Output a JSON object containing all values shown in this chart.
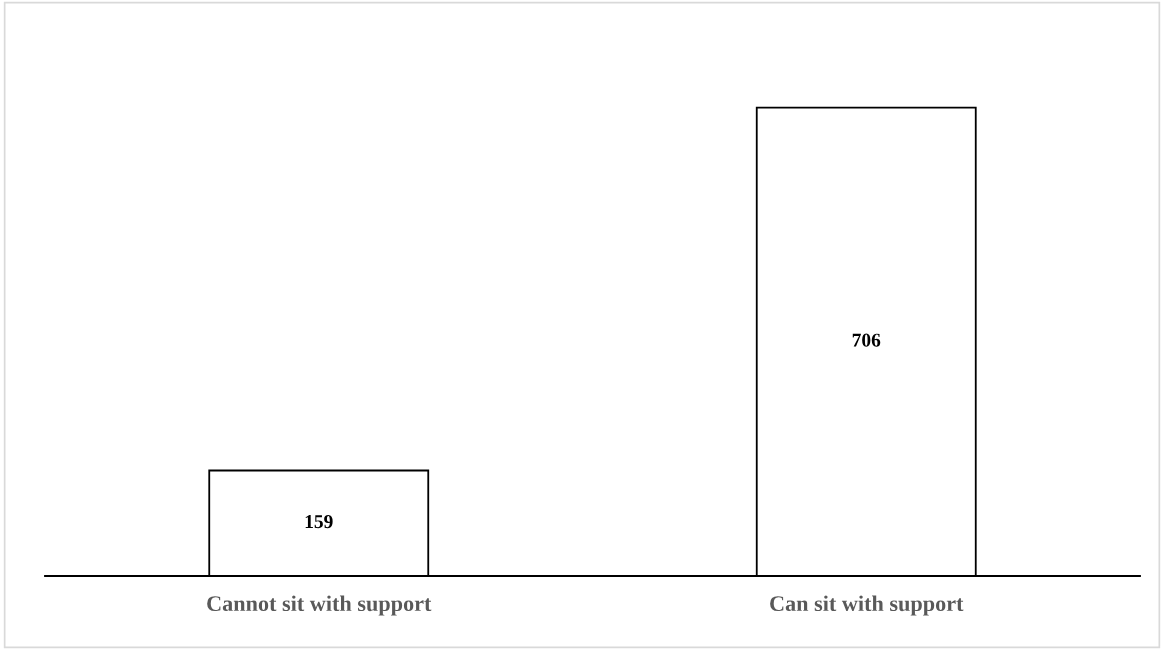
{
  "chart_data": {
    "type": "bar",
    "categories": [
      "Cannot sit with support",
      "Can sit with support"
    ],
    "values": [
      159,
      706
    ],
    "color": "#ffffff",
    "data_labels": true,
    "grid": false,
    "legend": false
  }
}
